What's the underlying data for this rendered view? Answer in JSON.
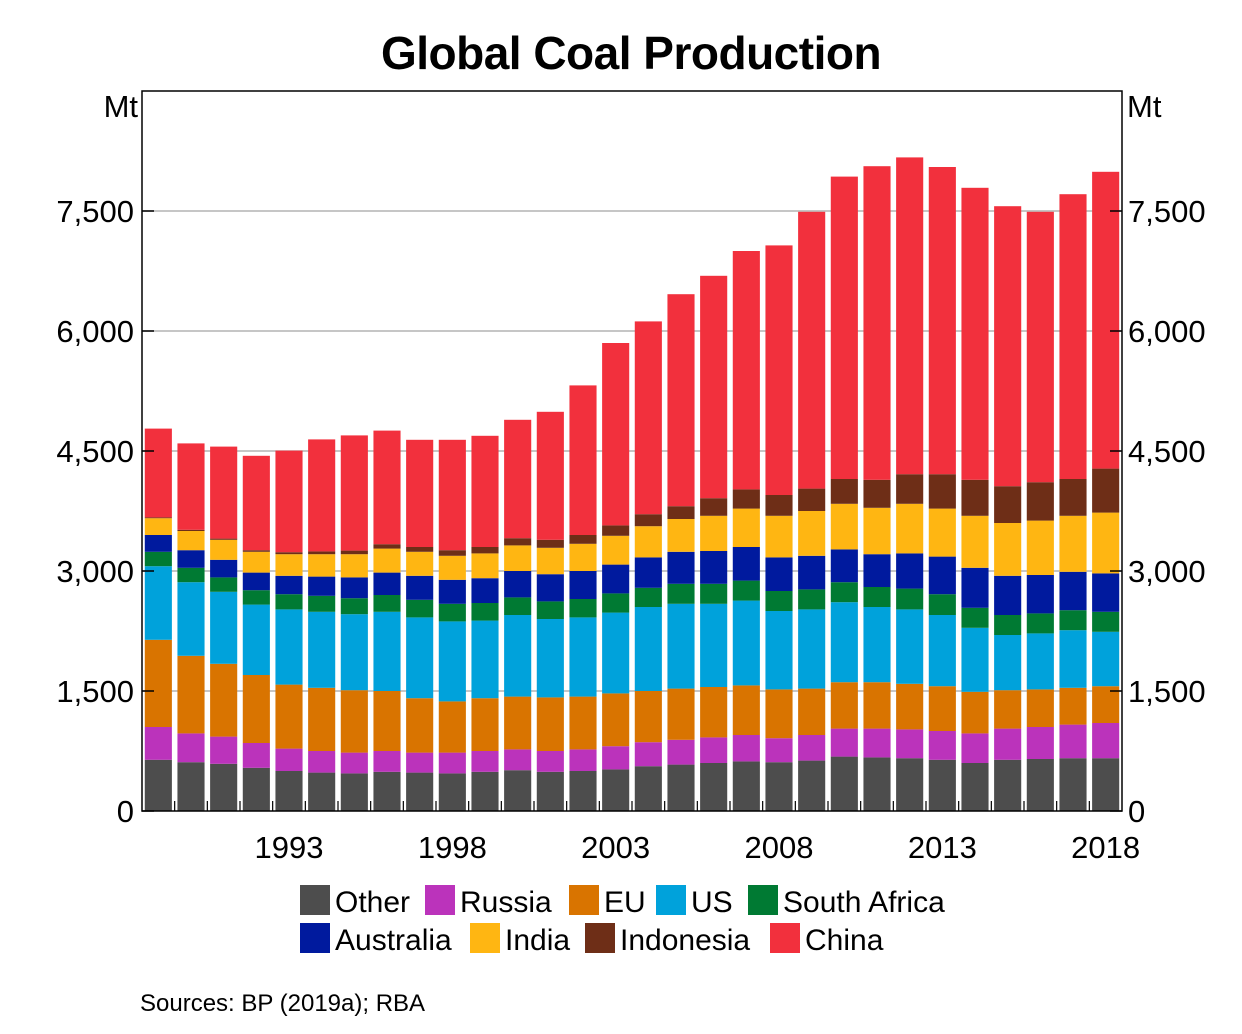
{
  "chart_data": {
    "type": "bar",
    "stacked": true,
    "title": "Global Coal Production",
    "y_unit_left": "Mt",
    "y_unit_right": "Mt",
    "ylim": [
      0,
      9000
    ],
    "yticks": [
      0,
      1500,
      3000,
      4500,
      6000,
      7500
    ],
    "ytick_labels": [
      "0",
      "1,500",
      "3,000",
      "4,500",
      "6,000",
      "7,500"
    ],
    "grid": true,
    "legend_position": "bottom",
    "x": [
      1989,
      1990,
      1991,
      1992,
      1993,
      1994,
      1995,
      1996,
      1997,
      1998,
      1999,
      2000,
      2001,
      2002,
      2003,
      2004,
      2005,
      2006,
      2007,
      2008,
      2009,
      2010,
      2011,
      2012,
      2013,
      2014,
      2015,
      2016,
      2017,
      2018
    ],
    "x_tick_values": [
      1993,
      1998,
      2003,
      2008,
      2013,
      2018
    ],
    "x_tick_labels": [
      "1993",
      "1998",
      "2003",
      "2008",
      "2013",
      "2018"
    ],
    "series": [
      {
        "name": "Other",
        "color": "#4d4d4d",
        "values": [
          640,
          610,
          590,
          540,
          500,
          480,
          470,
          490,
          480,
          470,
          490,
          510,
          490,
          500,
          520,
          560,
          580,
          600,
          620,
          610,
          630,
          680,
          670,
          660,
          640,
          600,
          640,
          650,
          660,
          660
        ]
      },
      {
        "name": "Russia",
        "color": "#bb33bb",
        "values": [
          410,
          360,
          340,
          310,
          280,
          270,
          260,
          260,
          250,
          260,
          260,
          260,
          260,
          270,
          290,
          300,
          310,
          320,
          330,
          300,
          320,
          350,
          360,
          360,
          360,
          370,
          390,
          400,
          420,
          440
        ]
      },
      {
        "name": "EU",
        "color": "#d97400",
        "values": [
          1090,
          970,
          910,
          850,
          800,
          790,
          780,
          750,
          680,
          640,
          660,
          660,
          670,
          660,
          660,
          640,
          640,
          630,
          620,
          610,
          580,
          580,
          580,
          570,
          560,
          520,
          480,
          470,
          460,
          460
        ]
      },
      {
        "name": "US",
        "color": "#00a2db",
        "values": [
          920,
          920,
          900,
          880,
          940,
          950,
          950,
          990,
          1010,
          1000,
          970,
          1020,
          980,
          990,
          1010,
          1050,
          1060,
          1040,
          1060,
          980,
          990,
          1000,
          940,
          930,
          890,
          800,
          690,
          700,
          720,
          680
        ]
      },
      {
        "name": "South Africa",
        "color": "#007a33",
        "values": [
          180,
          180,
          180,
          180,
          190,
          200,
          200,
          210,
          220,
          220,
          220,
          220,
          220,
          230,
          240,
          240,
          250,
          250,
          250,
          250,
          250,
          250,
          250,
          260,
          260,
          250,
          250,
          250,
          250,
          250
        ]
      },
      {
        "name": "Australia",
        "color": "#001a9e",
        "values": [
          210,
          220,
          220,
          220,
          230,
          240,
          260,
          280,
          300,
          300,
          310,
          330,
          340,
          350,
          360,
          380,
          400,
          410,
          420,
          420,
          420,
          410,
          410,
          440,
          470,
          500,
          490,
          480,
          480,
          480
        ]
      },
      {
        "name": "India",
        "color": "#ffb612",
        "values": [
          210,
          240,
          250,
          260,
          270,
          280,
          290,
          300,
          300,
          300,
          310,
          320,
          330,
          340,
          360,
          390,
          410,
          440,
          480,
          520,
          560,
          570,
          580,
          620,
          600,
          650,
          660,
          680,
          700,
          760
        ]
      },
      {
        "name": "Indonesia",
        "color": "#6e2e17",
        "values": [
          10,
          15,
          15,
          20,
          25,
          35,
          45,
          55,
          60,
          70,
          80,
          90,
          100,
          110,
          130,
          150,
          160,
          220,
          240,
          260,
          280,
          310,
          350,
          370,
          430,
          450,
          460,
          480,
          460,
          550
        ]
      },
      {
        "name": "China",
        "color": "#f2303d",
        "values": [
          1110,
          1080,
          1150,
          1180,
          1270,
          1400,
          1440,
          1420,
          1340,
          1380,
          1390,
          1480,
          1600,
          1870,
          2280,
          2410,
          2650,
          2780,
          2980,
          3120,
          3460,
          3780,
          3920,
          3960,
          3840,
          3650,
          3500,
          3380,
          3560,
          3710
        ]
      }
    ]
  },
  "source_note": "Sources: BP (2019a); RBA"
}
